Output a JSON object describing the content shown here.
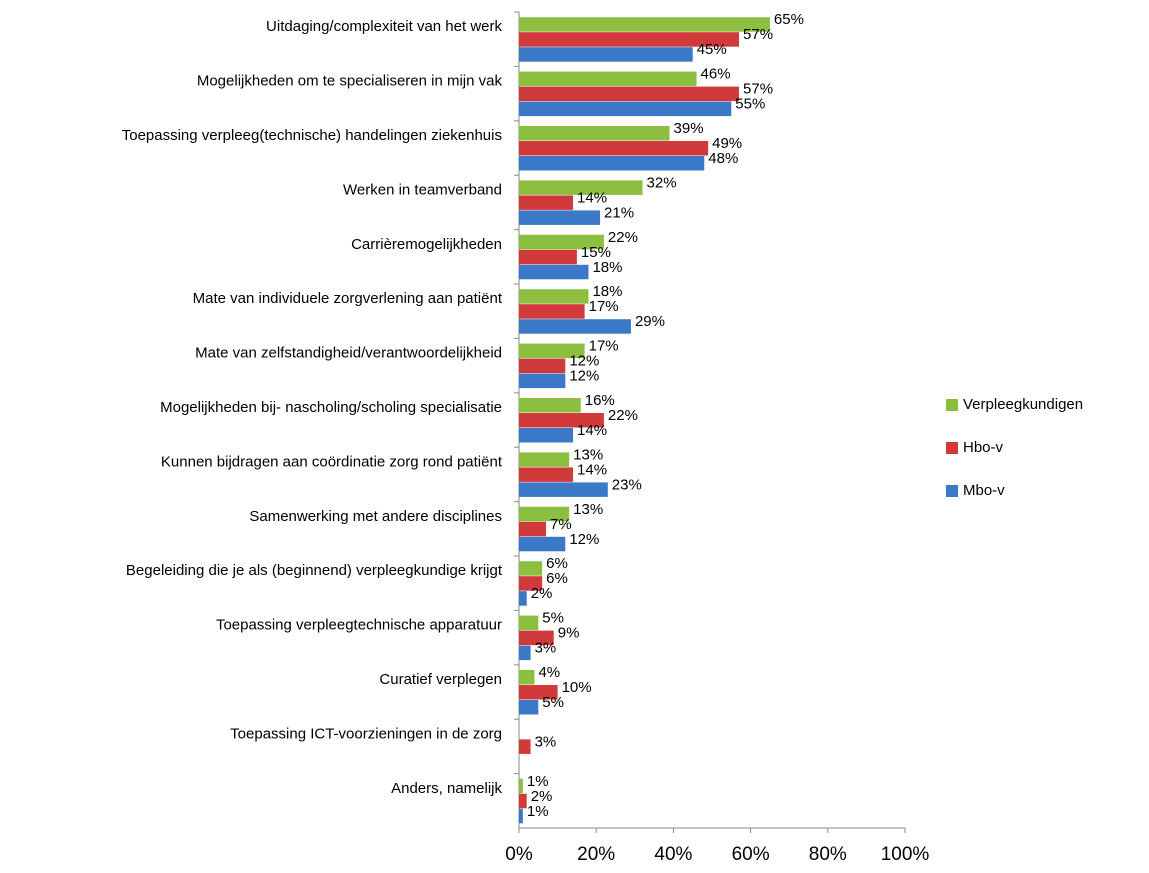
{
  "chart_data": {
    "type": "hbar",
    "categories": [
      "Uitdaging/complexiteit van het werk",
      "Mogelijkheden om te specialiseren in mijn vak",
      "Toepassing verpleeg(technische) handelingen ziekenhuis",
      "Werken in teamverband",
      "Carrièremogelijkheden",
      "Mate van individuele zorgverlening aan patiënt",
      "Mate van zelfstandigheid/verantwoordelijkheid",
      "Mogelijkheden bij- nascholing/scholing specialisatie",
      "Kunnen bijdragen aan coördinatie zorg rond patiënt",
      "Samenwerking met andere disciplines",
      "Begeleiding die je als (beginnend) verpleegkundige krijgt",
      "Toepassing verpleegtechnische apparatuur",
      "Curatief verplegen",
      "Toepassing ICT-voorzieningen in de zorg",
      "Anders, namelijk"
    ],
    "series": [
      {
        "name": "Verpleegkundigen",
        "color": "#8cbf3f",
        "values": [
          65,
          46,
          39,
          32,
          22,
          18,
          17,
          16,
          13,
          13,
          6,
          5,
          4,
          null,
          1
        ],
        "value_labels": [
          "65%",
          "46%",
          "39%",
          "32%",
          "22%",
          "18%",
          "17%",
          "16%",
          "13%",
          "13%",
          "6%",
          "5%",
          "4%",
          null,
          "1%"
        ]
      },
      {
        "name": "Hbo-v",
        "color": "#d03a3a",
        "values": [
          57,
          57,
          49,
          14,
          15,
          17,
          12,
          22,
          14,
          7,
          6,
          9,
          10,
          3,
          2
        ],
        "value_labels": [
          "57%",
          "57%",
          "49%",
          "14%",
          "15%",
          "17%",
          "12%",
          "22%",
          "14%",
          "7%",
          "6%",
          "9%",
          "10%",
          "3%",
          "2%"
        ]
      },
      {
        "name": "Mbo-v",
        "color": "#3c78c8",
        "values": [
          45,
          55,
          48,
          21,
          18,
          29,
          12,
          14,
          23,
          12,
          2,
          3,
          5,
          null,
          1
        ],
        "value_labels": [
          "45%",
          "55%",
          "48%",
          "21%",
          "18%",
          "29%",
          "12%",
          "14%",
          "23%",
          "12%",
          "2%",
          "3%",
          "5%",
          null,
          "1%"
        ]
      }
    ],
    "xlim": [
      0,
      100
    ],
    "xticks": [
      {
        "value": 0,
        "label": "0%"
      },
      {
        "value": 20,
        "label": "20%"
      },
      {
        "value": 40,
        "label": "40%"
      },
      {
        "value": 60,
        "label": "60%"
      },
      {
        "value": 80,
        "label": "80%"
      },
      {
        "value": 100,
        "label": "100%"
      }
    ],
    "legend": "right"
  }
}
